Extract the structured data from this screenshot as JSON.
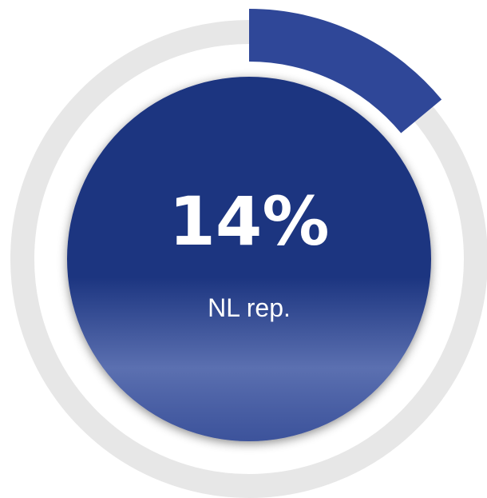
{
  "chart_data": {
    "type": "donut",
    "categories": [
      "NL rep."
    ],
    "values": [
      14
    ],
    "value_labels": [
      "14%"
    ],
    "color": "#2f4798",
    "track_color": "#e7e7e7",
    "center_color": "#1f3480"
  }
}
